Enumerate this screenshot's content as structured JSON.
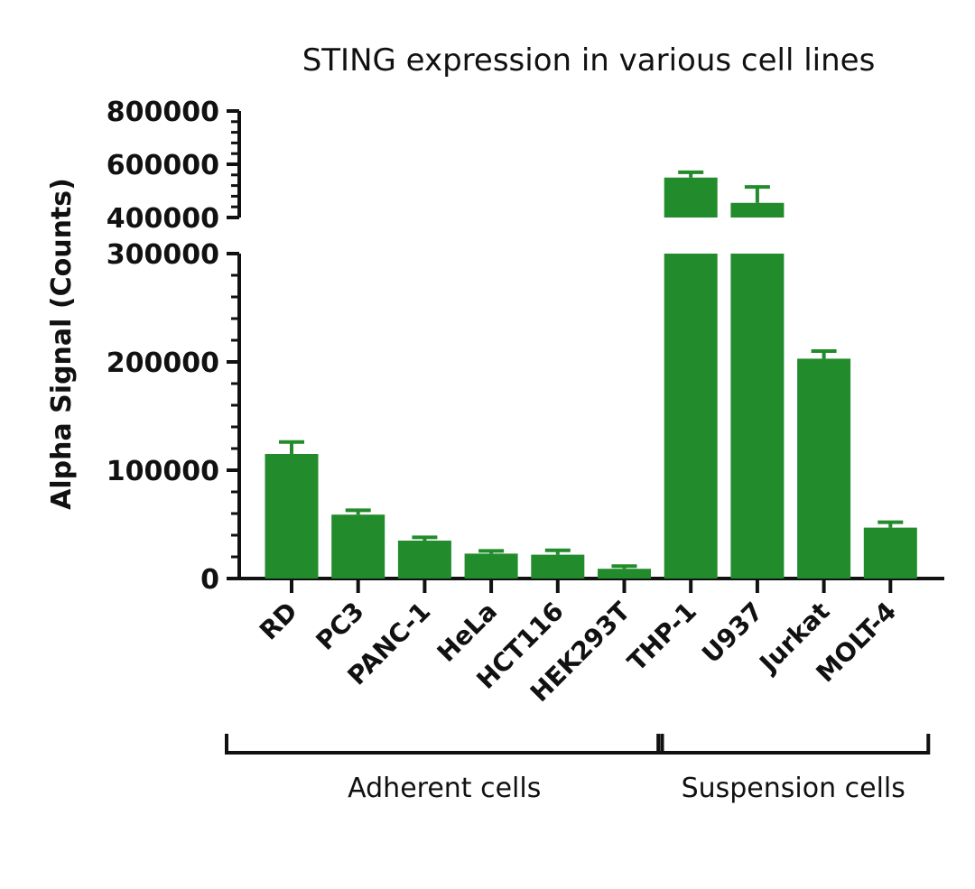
{
  "chart_data": {
    "type": "bar",
    "title": "STING expression in various cell lines",
    "ylabel": "Alpha Signal (Counts)",
    "xlabel": "",
    "y_axis_break": true,
    "ylim_lower": [
      0,
      300000
    ],
    "ylim_upper": [
      400000,
      800000
    ],
    "yticks_lower": [
      "0",
      "100000",
      "200000",
      "300000"
    ],
    "yticks_upper": [
      "400000",
      "600000",
      "800000"
    ],
    "grid": false,
    "bar_color": "#228b2c",
    "categories": [
      "RD",
      "PC3",
      "PANC-1",
      "HeLa",
      "HCT116",
      "HEK293T",
      "THP-1",
      "U937",
      "Jurkat",
      "MOLT-4"
    ],
    "values": [
      115000,
      59000,
      35000,
      23000,
      22000,
      9000,
      550000,
      455000,
      203000,
      47000
    ],
    "errors": [
      11000,
      4000,
      3000,
      2500,
      4000,
      2500,
      20000,
      60000,
      7000,
      5000
    ],
    "groups": [
      {
        "label": "Adherent cells",
        "categories": [
          "RD",
          "PC3",
          "PANC-1",
          "HeLa",
          "HCT116",
          "HEK293T"
        ]
      },
      {
        "label": "Suspension cells",
        "categories": [
          "THP-1",
          "U937",
          "Jurkat",
          "MOLT-4"
        ]
      }
    ]
  }
}
